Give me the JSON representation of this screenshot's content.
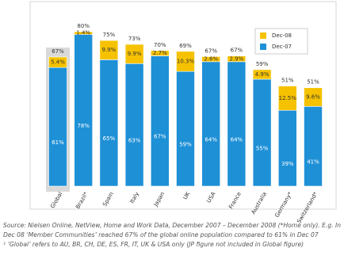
{
  "chart_data": {
    "type": "stacked-bar",
    "categories": [
      "Global",
      "Brazil*",
      "Spain",
      "Italy",
      "Japan",
      "UK",
      "USA",
      "France",
      "Australia",
      "Germany*",
      "Switzerland*"
    ],
    "series": [
      {
        "name": "Dec-07",
        "color": "#1e90d6",
        "values": [
          61,
          78,
          65,
          63,
          67,
          59,
          64,
          64,
          55,
          39,
          41
        ],
        "value_labels": [
          "61%",
          "78%",
          "65%",
          "63%",
          "67%",
          "59%",
          "64%",
          "64%",
          "55%",
          "39%",
          "41%"
        ]
      },
      {
        "name": "Dec-08",
        "color": "#f6c200",
        "values": [
          5.4,
          1.4,
          9.9,
          9.9,
          2.7,
          10.3,
          2.6,
          2.9,
          4.9,
          12.5,
          9.6
        ],
        "value_labels": [
          "5.4%",
          "1.4%",
          "9.9%",
          "9.9%",
          "2.7%",
          "10.3%",
          "2.6%",
          "2.9%",
          "4.9%",
          "12.5%",
          "9.6%"
        ]
      }
    ],
    "totals": {
      "values": [
        67,
        80,
        75,
        73,
        70,
        69,
        67,
        67,
        59,
        51,
        51
      ],
      "value_labels": [
        "67%",
        "80%",
        "75%",
        "73%",
        "70%",
        "69%",
        "67%",
        "67%",
        "59%",
        "51%",
        "51%"
      ]
    },
    "ylim": [
      0,
      90
    ],
    "legend": "top-right",
    "footnote": [
      "Source: Nielsen Online, NetView, Home and Work Data, December 2007 – December 2008 (*Home only). E.g. In",
      "Dec 08 ‘Member Communities’ reached 67% of the global online population compared to 61% in Dec 07",
      "¹ ‘Global’ refers to AU, BR, CH, DE, ES, FR, IT, UK & USA only (JP figure not included in Global figure)"
    ]
  }
}
